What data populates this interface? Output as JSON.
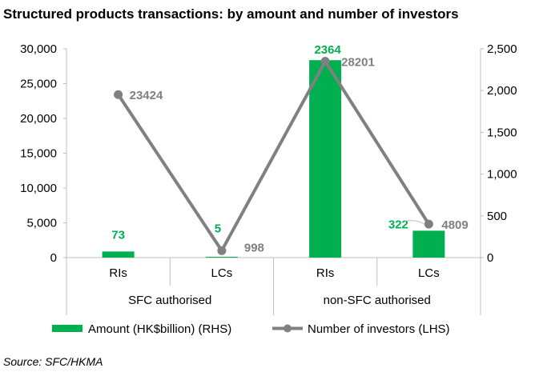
{
  "colors": {
    "bar": "#00b050",
    "line": "#808080",
    "axis": "#bfbfbf",
    "bar_label": "#00b050",
    "line_label": "#808080"
  },
  "chart_data": {
    "type": "bar",
    "title": "Structured products transactions: by amount and number of investors",
    "categories": [
      "RIs",
      "LCs",
      "RIs",
      "LCs"
    ],
    "groups": [
      {
        "label": "SFC authorised",
        "categories": [
          0,
          1
        ]
      },
      {
        "label": "non-SFC authorised",
        "categories": [
          2,
          3
        ]
      }
    ],
    "series": [
      {
        "name": "Amount (HK$billion) (RHS)",
        "type": "bar",
        "axis": "right",
        "values": [
          73,
          5,
          2364,
          322
        ],
        "labels": [
          "73",
          "5",
          "2364",
          "322"
        ]
      },
      {
        "name": "Number of investors (LHS)",
        "type": "line",
        "axis": "left",
        "values": [
          23424,
          998,
          28201,
          4809
        ],
        "labels": [
          "23424",
          "998",
          "28201",
          "4809"
        ]
      }
    ],
    "left_axis": {
      "min": 0,
      "max": 30000,
      "ticks": [
        "0",
        "5,000",
        "10,000",
        "15,000",
        "20,000",
        "25,000",
        "30,000"
      ],
      "tick_values": [
        0,
        5000,
        10000,
        15000,
        20000,
        25000,
        30000
      ]
    },
    "right_axis": {
      "min": 0,
      "max": 2500,
      "ticks": [
        "0",
        "500",
        "1,000",
        "1,500",
        "2,000",
        "2,500"
      ],
      "tick_values": [
        0,
        500,
        1000,
        1500,
        2000,
        2500
      ]
    },
    "grid": false,
    "legend_position": "bottom",
    "source": "Source: SFC/HKMA"
  }
}
